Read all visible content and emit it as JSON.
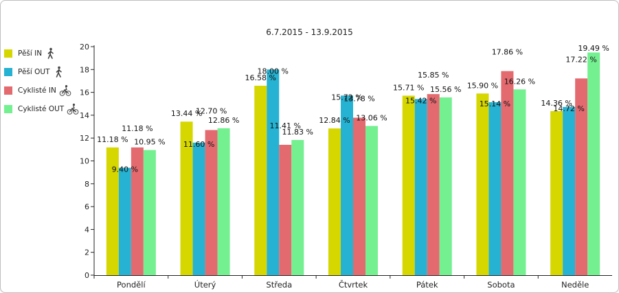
{
  "chart_data": {
    "type": "bar",
    "title": "6.7.2015 - 13.9.2015",
    "categories": [
      "Pondělí",
      "Úterý",
      "Středa",
      "Čtvrtek",
      "Pátek",
      "Sobota",
      "Neděle"
    ],
    "series": [
      {
        "name": "Pěší IN",
        "color": "#d6d600",
        "icon": "pedestrian-icon",
        "values": [
          11.18,
          13.44,
          16.58,
          12.84,
          15.71,
          15.9,
          14.36
        ]
      },
      {
        "name": "Pěší OUT",
        "color": "#26b2d2",
        "icon": "pedestrian-icon",
        "values": [
          9.4,
          11.6,
          18.0,
          15.72,
          15.42,
          15.14,
          14.72
        ]
      },
      {
        "name": "Cyklisté IN",
        "color": "#e36a6f",
        "icon": "cyclist-icon",
        "values": [
          11.18,
          12.7,
          11.41,
          13.78,
          15.85,
          17.86,
          17.22
        ]
      },
      {
        "name": "Cyklisté OUT",
        "color": "#74f090",
        "icon": "cyclist-icon",
        "values": [
          10.95,
          12.86,
          11.83,
          13.06,
          15.56,
          16.26,
          19.49
        ]
      }
    ],
    "data_labels": [
      [
        "11.18 %",
        "9.40 %",
        "11.18 %",
        "10.95 %"
      ],
      [
        "13.44 %",
        "11.60 %",
        "12.70 %",
        "12.86 %"
      ],
      [
        "16.58 %",
        "18.00 %",
        "11.41 %",
        "11.83 %"
      ],
      [
        "12.84 %",
        "15.72 %",
        "13.78 %",
        "13.06 %"
      ],
      [
        "15.71 %",
        "15.42 %",
        "15.85 %",
        "15.56 %"
      ],
      [
        "15.90 %",
        "15.14 %",
        "17.86 %",
        "16.26 %"
      ],
      [
        "14.36 %",
        "14.72 %",
        "17.22 %",
        "19.49 %"
      ]
    ],
    "ylim": [
      0,
      20
    ],
    "yticks": [
      0,
      2,
      4,
      6,
      8,
      10,
      12,
      14,
      16,
      18,
      20
    ],
    "grid": false,
    "legend_position": "left"
  }
}
